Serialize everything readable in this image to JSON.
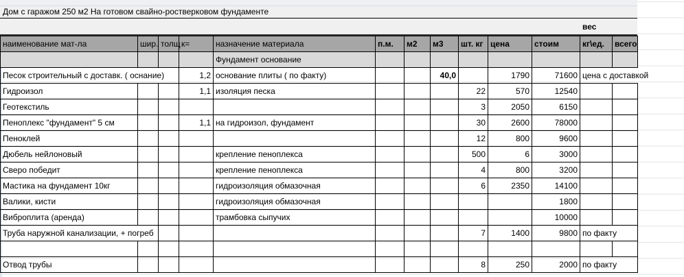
{
  "title": "Дом с гаражом 250 м2 На готовом свайно-ростверковом фундаменте",
  "weight_group_label": "вес",
  "columns": [
    "наименование мат-ла",
    "шир.",
    "толщ",
    "к=",
    "назначение материала",
    "п.м.",
    "м2",
    "м3",
    "шт. кг",
    "цена",
    "стоим",
    "кг\\ед.",
    "всего"
  ],
  "section": "Фундамент основание",
  "rows": [
    {
      "name": "Песок строительный с доставк. ( оснание)",
      "k": "1,2",
      "purpose": "основание плиты ( по факту)",
      "m3": "40,0",
      "qty": "",
      "price": "1790",
      "cost": "71600",
      "note": "цена с доставкой"
    },
    {
      "name": "Гидроизол",
      "k": "1,1",
      "purpose": "изоляция песка",
      "qty": "22",
      "price": "570",
      "cost": "12540"
    },
    {
      "name": "Геотекстиль",
      "qty": "3",
      "price": "2050",
      "cost": "6150"
    },
    {
      "name": "Пеноплекс \"фундамент\" 5 см",
      "k": "1,1",
      "purpose": "на гидроизол, фундамент",
      "qty": "30",
      "price": "2600",
      "cost": "78000"
    },
    {
      "name": "Пеноклей",
      "qty": "12",
      "price": "800",
      "cost": "9600"
    },
    {
      "name": "Дюбель нейлоновый",
      "purpose": "крепление пеноплекса",
      "qty": "500",
      "price": "6",
      "cost": "3000"
    },
    {
      "name": "Сверо победит",
      "purpose": "крепление пеноплекса",
      "qty": "4",
      "price": "800",
      "cost": "3200"
    },
    {
      "name": "Мастика на фундамент 10кг",
      "purpose": "гидроизоляция обмазочная",
      "qty": "6",
      "price": "2350",
      "cost": "14100"
    },
    {
      "name": "Валики, кисти",
      "purpose": "гидроизоляция обмазочная",
      "cost": "1800"
    },
    {
      "name": "Виброплита (аренда)",
      "purpose": "трамбовка сыпучих",
      "cost": "10000"
    },
    {
      "name": "Труба наружной канализации, + погреб",
      "qty": "7",
      "price": "1400",
      "cost": "9800",
      "note": "по факту"
    },
    {
      "name": ""
    },
    {
      "name": "Отвод трубы",
      "qty": "8",
      "price": "250",
      "cost": "2000",
      "note": "по факту"
    }
  ]
}
